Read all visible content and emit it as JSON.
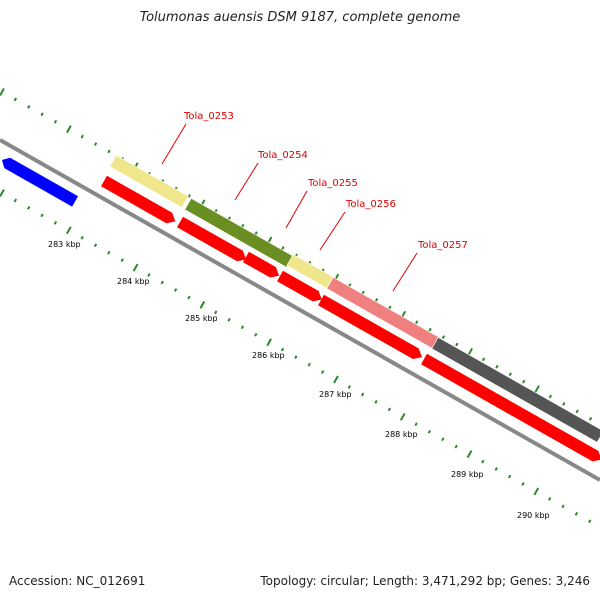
{
  "title": "Tolumonas auensis DSM 9187, complete genome",
  "accession_text": "Accession: NC_012691",
  "summary_text": "Topology: circular; Length: 3,471,292 bp; Genes: 3,246",
  "colors": {
    "backbone": "#888888",
    "tick": "#2a8a2a",
    "gene_label": "#e00000",
    "cds": "#ff0000",
    "blue_feature": "#0000ff"
  },
  "scale": {
    "unit": "kbp",
    "labels": [
      "283 kbp",
      "284 kbp",
      "285 kbp",
      "286 kbp",
      "287 kbp",
      "288 kbp",
      "289 kbp",
      "290 kbp"
    ]
  },
  "features": {
    "genes": [
      {
        "label": "Tola_0253",
        "color": "#f0e68c"
      },
      {
        "label": "Tola_0254",
        "color": "#6b8e23"
      },
      {
        "label": "Tola_0255",
        "color": "#f0e68c"
      },
      {
        "label": "Tola_0256",
        "color": "#f08080"
      },
      {
        "label": "Tola_0257",
        "color": "#555555"
      }
    ],
    "cds_count": 6,
    "blue_count": 1
  }
}
